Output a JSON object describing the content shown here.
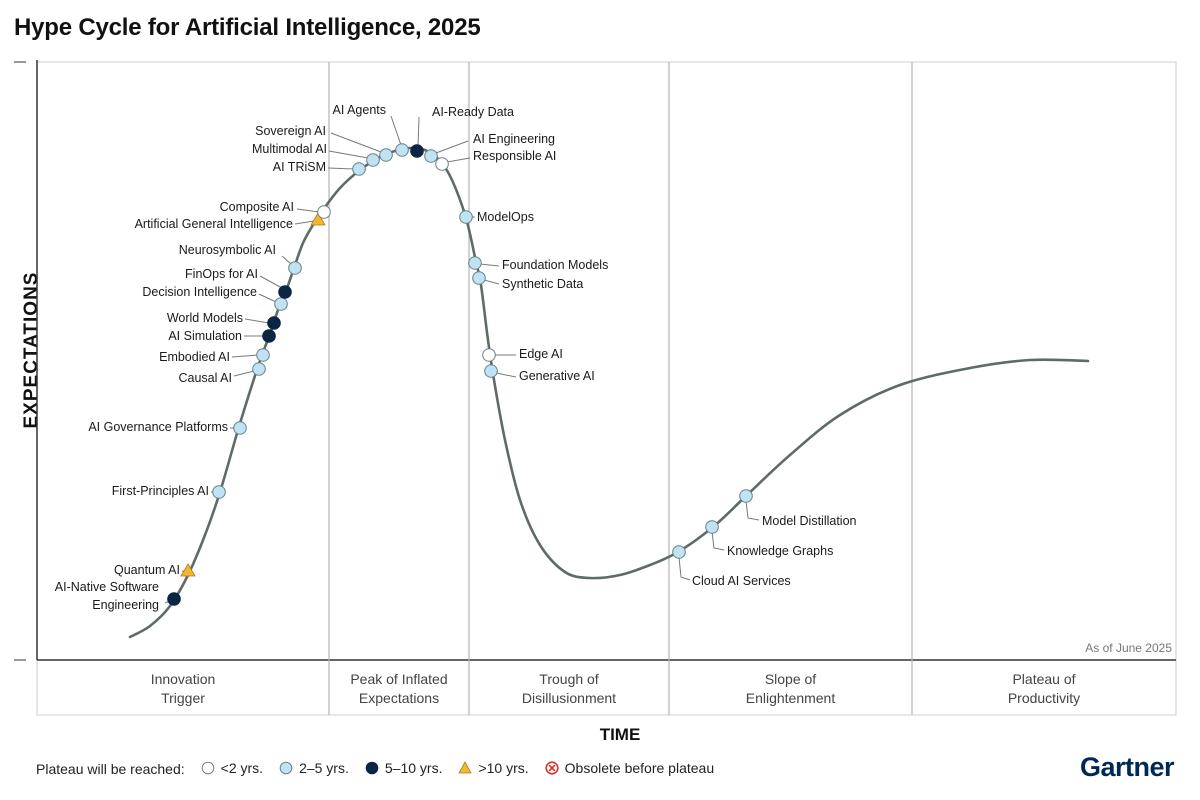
{
  "header": {
    "title": "Hype Cycle for Artificial Intelligence, 2025"
  },
  "colors": {
    "lt2": "#ffffff",
    "y2to5": "#bfe3f3",
    "y5to10": "#0b2545",
    "gt10": "#f2b632",
    "obsolete": "#d9332b",
    "curve": "#5f6b67",
    "brand": "#002856"
  },
  "legend": {
    "label": "Plateau will be reached:",
    "items": [
      {
        "key": "lt2",
        "label": "<2 yrs.",
        "icon": "open-circle-icon"
      },
      {
        "key": "y2to5",
        "label": "2–5 yrs.",
        "icon": "light-blue-circle-icon"
      },
      {
        "key": "y5to10",
        "label": "5–10 yrs.",
        "icon": "dark-blue-circle-icon"
      },
      {
        "key": "gt10",
        "label": ">10 yrs.",
        "icon": "yellow-triangle-icon"
      },
      {
        "key": "obsolete",
        "label": "Obsolete before plateau",
        "icon": "red-x-circle-icon"
      }
    ]
  },
  "brand": "Gartner",
  "chart_data": {
    "type": "scatter",
    "title": "Hype Cycle for Artificial Intelligence, 2025",
    "xlabel": "TIME",
    "ylabel": "EXPECTATIONS",
    "note": "As of June 2025",
    "phases": [
      {
        "name": "Innovation\nTrigger",
        "label": [
          "Innovation",
          "Trigger"
        ]
      },
      {
        "name": "Peak of Inflated\nExpectations",
        "label": [
          "Peak of Inflated",
          "Expectations"
        ]
      },
      {
        "name": "Trough of\nDisillusionment",
        "label": [
          "Trough of",
          "Disillusionment"
        ]
      },
      {
        "name": "Slope of\nEnlightenment",
        "label": [
          "Slope of",
          "Enlightenment"
        ]
      },
      {
        "name": "Plateau of\nProductivity",
        "label": [
          "Plateau of",
          "Productivity"
        ]
      }
    ],
    "technologies": [
      {
        "name": "AI-Native Software Engineering",
        "lines": [
          "AI-Native Software",
          "Engineering"
        ],
        "plateau": "5–10 yrs.",
        "key": "y5to10"
      },
      {
        "name": "Quantum AI",
        "lines": [
          "Quantum AI"
        ],
        "plateau": ">10 yrs.",
        "key": "gt10"
      },
      {
        "name": "First-Principles AI",
        "lines": [
          "First-Principles AI"
        ],
        "plateau": "2–5 yrs.",
        "key": "y2to5"
      },
      {
        "name": "AI Governance Platforms",
        "lines": [
          "AI Governance Platforms"
        ],
        "plateau": "2–5 yrs.",
        "key": "y2to5"
      },
      {
        "name": "Causal AI",
        "lines": [
          "Causal AI"
        ],
        "plateau": "2–5 yrs.",
        "key": "y2to5"
      },
      {
        "name": "Embodied AI",
        "lines": [
          "Embodied AI"
        ],
        "plateau": "2–5 yrs.",
        "key": "y2to5"
      },
      {
        "name": "AI Simulation",
        "lines": [
          "AI Simulation"
        ],
        "plateau": "5–10 yrs.",
        "key": "y5to10"
      },
      {
        "name": "World Models",
        "lines": [
          "World Models"
        ],
        "plateau": "5–10 yrs.",
        "key": "y5to10"
      },
      {
        "name": "Decision Intelligence",
        "lines": [
          "Decision Intelligence"
        ],
        "plateau": "2–5 yrs.",
        "key": "y2to5"
      },
      {
        "name": "FinOps for AI",
        "lines": [
          "FinOps for AI"
        ],
        "plateau": "5–10 yrs.",
        "key": "y5to10"
      },
      {
        "name": "Neurosymbolic AI",
        "lines": [
          "Neurosymbolic AI"
        ],
        "plateau": "2–5 yrs.",
        "key": "y2to5"
      },
      {
        "name": "Artificial General Intelligence",
        "lines": [
          "Artificial General Intelligence"
        ],
        "plateau": ">10 yrs.",
        "key": "gt10"
      },
      {
        "name": "Composite AI",
        "lines": [
          "Composite AI"
        ],
        "plateau": "<2 yrs.",
        "key": "lt2"
      },
      {
        "name": "AI TRiSM",
        "lines": [
          "AI TRiSM"
        ],
        "plateau": "2–5 yrs.",
        "key": "y2to5"
      },
      {
        "name": "Multimodal AI",
        "lines": [
          "Multimodal AI"
        ],
        "plateau": "2–5 yrs.",
        "key": "y2to5"
      },
      {
        "name": "Sovereign AI",
        "lines": [
          "Sovereign AI"
        ],
        "plateau": "2–5 yrs.",
        "key": "y2to5"
      },
      {
        "name": "AI Agents",
        "lines": [
          "AI Agents"
        ],
        "plateau": "2–5 yrs.",
        "key": "y2to5"
      },
      {
        "name": "AI-Ready Data",
        "lines": [
          "AI-Ready Data"
        ],
        "plateau": "5–10 yrs.",
        "key": "y5to10"
      },
      {
        "name": "AI Engineering",
        "lines": [
          "AI Engineering"
        ],
        "plateau": "2–5 yrs.",
        "key": "y2to5"
      },
      {
        "name": "Responsible AI",
        "lines": [
          "Responsible AI"
        ],
        "plateau": "<2 yrs.",
        "key": "lt2"
      },
      {
        "name": "ModelOps",
        "lines": [
          "ModelOps"
        ],
        "plateau": "2–5 yrs.",
        "key": "y2to5"
      },
      {
        "name": "Foundation Models",
        "lines": [
          "Foundation Models"
        ],
        "plateau": "2–5 yrs.",
        "key": "y2to5"
      },
      {
        "name": "Synthetic Data",
        "lines": [
          "Synthetic Data"
        ],
        "plateau": "2–5 yrs.",
        "key": "y2to5"
      },
      {
        "name": "Edge AI",
        "lines": [
          "Edge AI"
        ],
        "plateau": "<2 yrs.",
        "key": "lt2"
      },
      {
        "name": "Generative AI",
        "lines": [
          "Generative AI"
        ],
        "plateau": "2–5 yrs.",
        "key": "y2to5"
      },
      {
        "name": "Cloud AI Services",
        "lines": [
          "Cloud AI Services"
        ],
        "plateau": "2–5 yrs.",
        "key": "y2to5"
      },
      {
        "name": "Knowledge Graphs",
        "lines": [
          "Knowledge Graphs"
        ],
        "plateau": "2–5 yrs.",
        "key": "y2to5"
      },
      {
        "name": "Model Distillation",
        "lines": [
          "Model Distillation"
        ],
        "plateau": "2–5 yrs.",
        "key": "y2to5"
      }
    ]
  }
}
